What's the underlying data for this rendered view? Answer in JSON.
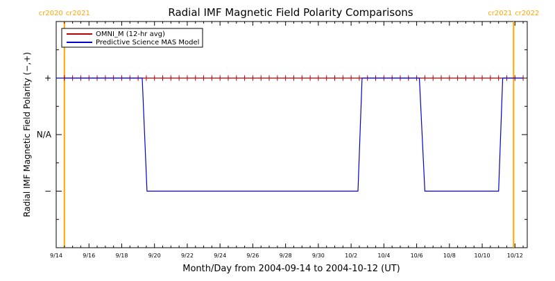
{
  "chart_data": {
    "type": "line",
    "title": "Radial IMF Magnetic Field Polarity Comparisons",
    "xlabel": "Month/Day from 2004-09-14 to 2004-10-12 (UT)",
    "ylabel": "Radial IMF Magnetic Field Polarity (−,+)",
    "x_unit": "days",
    "xlim": [
      "2004-09-14 00:00",
      "2004-10-12 18:00"
    ],
    "ylim": [
      -2,
      2
    ],
    "x_ticks": [
      {
        "date": "2004-09-14",
        "label": "9/14"
      },
      {
        "date": "2004-09-16",
        "label": "9/16"
      },
      {
        "date": "2004-09-18",
        "label": "9/18"
      },
      {
        "date": "2004-09-20",
        "label": "9/20"
      },
      {
        "date": "2004-09-22",
        "label": "9/22"
      },
      {
        "date": "2004-09-24",
        "label": "9/24"
      },
      {
        "date": "2004-09-26",
        "label": "9/26"
      },
      {
        "date": "2004-09-28",
        "label": "9/28"
      },
      {
        "date": "2004-09-30",
        "label": "9/30"
      },
      {
        "date": "2004-10-02",
        "label": "10/2"
      },
      {
        "date": "2004-10-04",
        "label": "10/4"
      },
      {
        "date": "2004-10-06",
        "label": "10/6"
      },
      {
        "date": "2004-10-08",
        "label": "10/8"
      },
      {
        "date": "2004-10-10",
        "label": "10/10"
      },
      {
        "date": "2004-10-12",
        "label": "10/12"
      }
    ],
    "y_ticks": [
      {
        "value": 1,
        "label": "+"
      },
      {
        "value": 0,
        "label": "N/A"
      },
      {
        "value": -1,
        "label": "−"
      }
    ],
    "grid": false,
    "legend_position": "top-left",
    "carrington_markers": [
      {
        "date": "2004-09-14 12:00",
        "left_label": "cr2020",
        "right_label": "cr2021",
        "color": "#ffa500"
      },
      {
        "date": "2004-10-11 22:00",
        "left_label": "cr2021",
        "right_label": "cr2022",
        "color": "#ffa500"
      }
    ],
    "series": [
      {
        "name": "OMNI_M (12-hr avg)",
        "color": "#b00000",
        "marker": "plus",
        "points": [
          [
            "2004-09-14 12:00",
            1
          ],
          [
            "2004-09-15 00:00",
            1
          ],
          [
            "2004-09-15 12:00",
            1
          ],
          [
            "2004-09-16 00:00",
            1
          ],
          [
            "2004-09-16 12:00",
            1
          ],
          [
            "2004-09-17 00:00",
            1
          ],
          [
            "2004-09-17 12:00",
            1
          ],
          [
            "2004-09-18 00:00",
            1
          ],
          [
            "2004-09-18 12:00",
            1
          ],
          [
            "2004-09-19 00:00",
            1
          ],
          [
            "2004-09-19 12:00",
            1
          ],
          [
            "2004-09-20 00:00",
            1
          ],
          [
            "2004-09-20 12:00",
            1
          ],
          [
            "2004-09-21 00:00",
            1
          ],
          [
            "2004-09-21 12:00",
            1
          ],
          [
            "2004-09-22 00:00",
            1
          ],
          [
            "2004-09-22 12:00",
            1
          ],
          [
            "2004-09-23 00:00",
            1
          ],
          [
            "2004-09-23 12:00",
            1
          ],
          [
            "2004-09-24 00:00",
            1
          ],
          [
            "2004-09-24 12:00",
            1
          ],
          [
            "2004-09-25 00:00",
            1
          ],
          [
            "2004-09-25 12:00",
            1
          ],
          [
            "2004-09-26 00:00",
            1
          ],
          [
            "2004-09-26 12:00",
            1
          ],
          [
            "2004-09-27 00:00",
            1
          ],
          [
            "2004-09-27 12:00",
            1
          ],
          [
            "2004-09-28 00:00",
            1
          ],
          [
            "2004-09-28 12:00",
            1
          ],
          [
            "2004-09-29 00:00",
            1
          ],
          [
            "2004-09-29 12:00",
            1
          ],
          [
            "2004-09-30 00:00",
            1
          ],
          [
            "2004-09-30 12:00",
            1
          ],
          [
            "2004-10-01 00:00",
            1
          ],
          [
            "2004-10-01 12:00",
            1
          ],
          [
            "2004-10-02 00:00",
            1
          ],
          [
            "2004-10-02 12:00",
            1
          ],
          [
            "2004-10-03 00:00",
            1
          ],
          [
            "2004-10-03 12:00",
            1
          ],
          [
            "2004-10-04 00:00",
            1
          ],
          [
            "2004-10-04 12:00",
            1
          ],
          [
            "2004-10-05 00:00",
            1
          ],
          [
            "2004-10-05 12:00",
            1
          ],
          [
            "2004-10-06 00:00",
            1
          ],
          [
            "2004-10-06 12:00",
            1
          ],
          [
            "2004-10-07 00:00",
            1
          ],
          [
            "2004-10-07 12:00",
            1
          ],
          [
            "2004-10-08 00:00",
            1
          ],
          [
            "2004-10-08 12:00",
            1
          ],
          [
            "2004-10-09 00:00",
            1
          ],
          [
            "2004-10-09 12:00",
            1
          ],
          [
            "2004-10-10 00:00",
            1
          ],
          [
            "2004-10-10 12:00",
            1
          ],
          [
            "2004-10-11 00:00",
            1
          ],
          [
            "2004-10-11 12:00",
            1
          ],
          [
            "2004-10-12 00:00",
            1
          ],
          [
            "2004-10-12 12:00",
            1
          ]
        ]
      },
      {
        "name": "Predictive Science MAS Model",
        "color": "#0000cc",
        "marker": "none",
        "points": [
          [
            "2004-09-14 00:00",
            1
          ],
          [
            "2004-09-19 06:00",
            1
          ],
          [
            "2004-09-19 13:00",
            -1
          ],
          [
            "2004-10-02 10:00",
            -1
          ],
          [
            "2004-10-02 16:00",
            1
          ],
          [
            "2004-10-06 04:00",
            1
          ],
          [
            "2004-10-06 12:00",
            -1
          ],
          [
            "2004-10-11 00:00",
            -1
          ],
          [
            "2004-10-11 06:00",
            1
          ],
          [
            "2004-10-12 12:00",
            1
          ]
        ]
      }
    ]
  }
}
